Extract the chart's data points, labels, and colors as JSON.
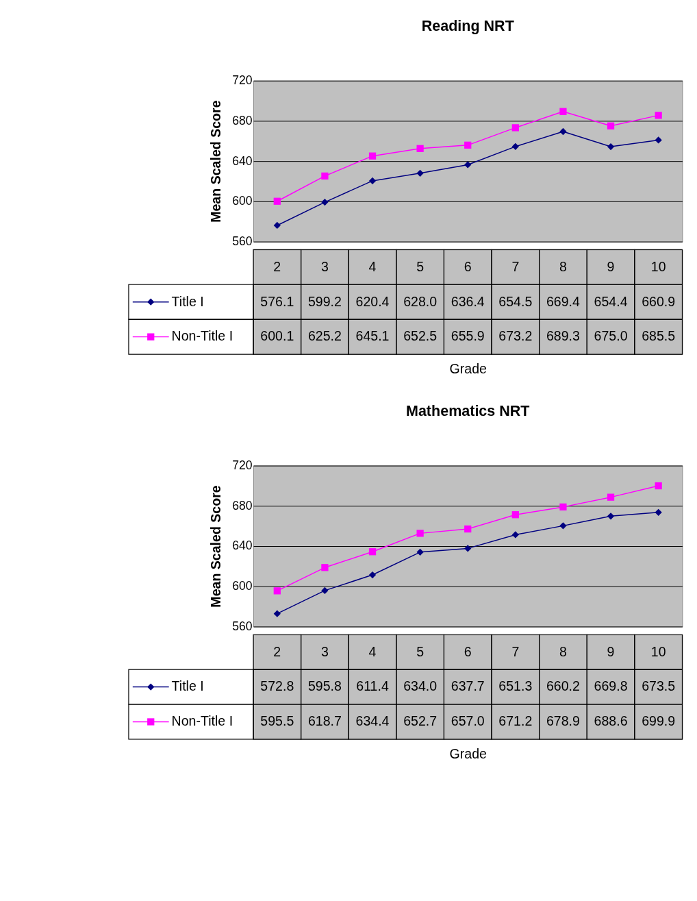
{
  "chart_data": [
    {
      "type": "line",
      "title": "Reading NRT",
      "xlabel": "Grade",
      "ylabel": "Mean Scaled Score",
      "categories": [
        "2",
        "3",
        "4",
        "5",
        "6",
        "7",
        "8",
        "9",
        "10"
      ],
      "ylim": [
        560,
        720
      ],
      "yticks": [
        560,
        600,
        640,
        680,
        720
      ],
      "grid": "y",
      "legend": "bottom",
      "line_style": "solid",
      "series": [
        {
          "name": "Title I",
          "color": "#000080",
          "marker": "diamond",
          "values": [
            576.1,
            599.2,
            620.4,
            628.0,
            636.4,
            654.5,
            669.4,
            654.4,
            660.9
          ],
          "value_labels": [
            "576.1",
            "599.2",
            "620.4",
            "628.0",
            "636.4",
            "654.5",
            "669.4",
            "654.4",
            "660.9"
          ]
        },
        {
          "name": "Non-Title I",
          "color": "#ff00ff",
          "marker": "square",
          "values": [
            600.1,
            625.2,
            645.1,
            652.5,
            655.9,
            673.2,
            689.3,
            675.0,
            685.5
          ],
          "value_labels": [
            "600.1",
            "625.2",
            "645.1",
            "652.5",
            "655.9",
            "673.2",
            "689.3",
            "675.0",
            "685.5"
          ]
        }
      ]
    },
    {
      "type": "line",
      "title": "Mathematics NRT",
      "xlabel": "Grade",
      "ylabel": "Mean Scaled Score",
      "categories": [
        "2",
        "3",
        "4",
        "5",
        "6",
        "7",
        "8",
        "9",
        "10"
      ],
      "ylim": [
        560,
        720
      ],
      "yticks": [
        560,
        600,
        640,
        680,
        720
      ],
      "grid": "y",
      "legend": "bottom",
      "line_style": "solid",
      "series": [
        {
          "name": "Title I",
          "color": "#000080",
          "marker": "diamond",
          "values": [
            572.8,
            595.8,
            611.4,
            634.0,
            637.7,
            651.3,
            660.2,
            669.8,
            673.5
          ],
          "value_labels": [
            "572.8",
            "595.8",
            "611.4",
            "634.0",
            "637.7",
            "651.3",
            "660.2",
            "669.8",
            "673.5"
          ]
        },
        {
          "name": "Non-Title I",
          "color": "#ff00ff",
          "marker": "square",
          "values": [
            595.5,
            618.7,
            634.4,
            652.7,
            657.0,
            671.2,
            678.9,
            688.6,
            699.9
          ],
          "value_labels": [
            "595.5",
            "618.7",
            "634.4",
            "652.7",
            "657.0",
            "671.2",
            "678.9",
            "688.6",
            "699.9"
          ]
        }
      ]
    }
  ]
}
